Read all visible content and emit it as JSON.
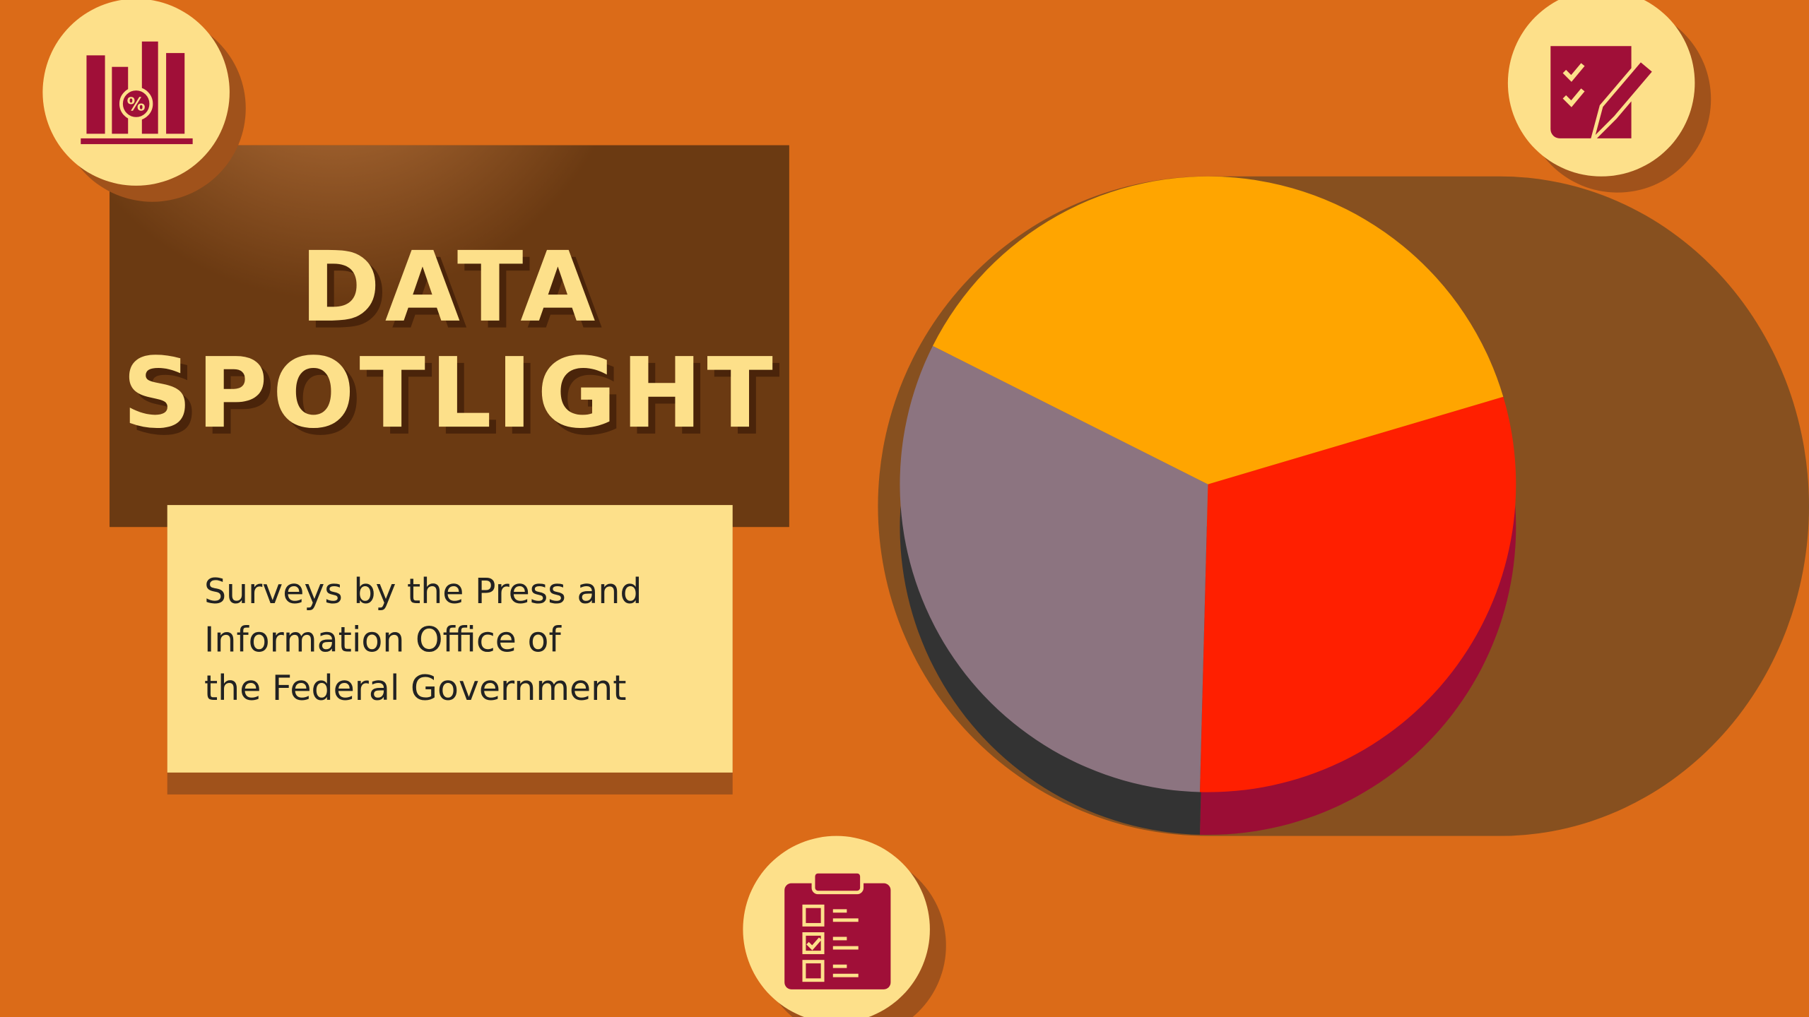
{
  "chart_data": {
    "type": "pie",
    "title_lines": [
      "DATA",
      "SPOTLIGHT"
    ],
    "subtitle_lines": [
      "Surveys by the Press and",
      "Information Office of",
      "the Federal Government"
    ],
    "values": [
      38,
      30,
      32
    ],
    "colors": [
      "#ffa500",
      "#ff1f00",
      "#8c7480"
    ],
    "depth_colors": [
      "#b07000",
      "#9b0d35",
      "#333333"
    ]
  }
}
